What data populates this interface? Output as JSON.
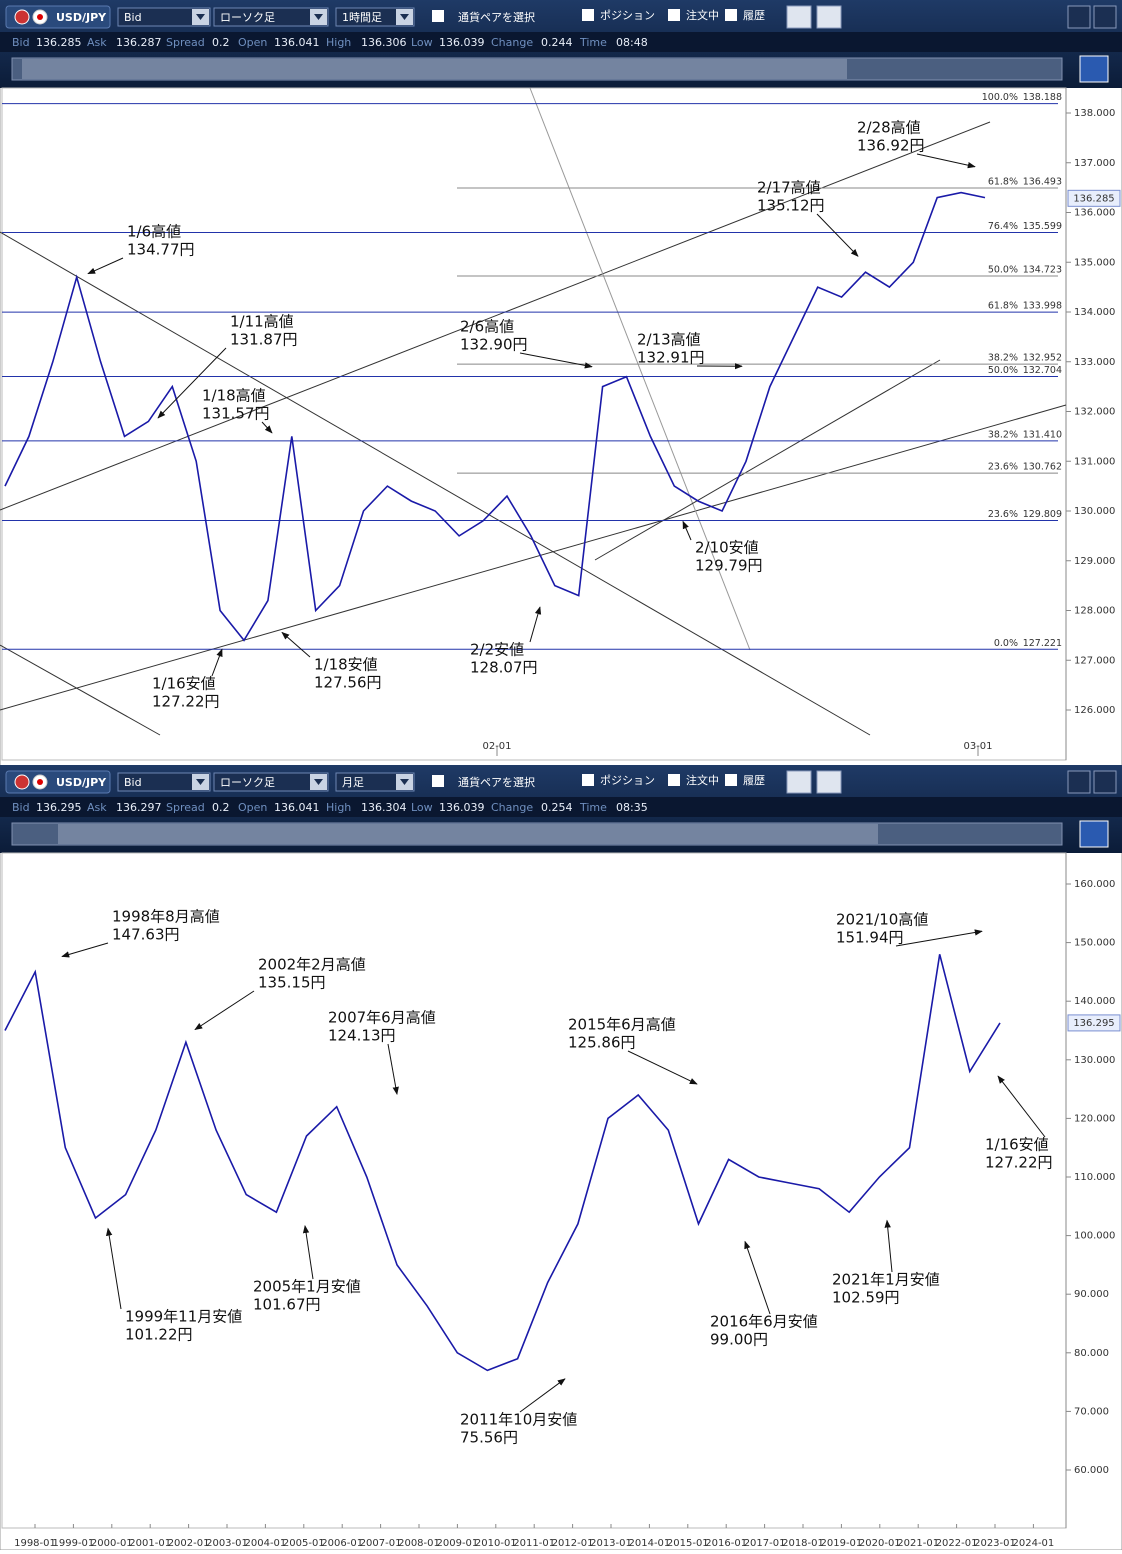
{
  "toolbars": [
    {
      "pair": "USD/JPY",
      "price_type": "Bid",
      "chart_style": "ローソク足",
      "timeframe": "1時間足",
      "pair_select": "通貨ペアを選択",
      "checkboxes": [
        "ポジション",
        "注文中",
        "履歴"
      ]
    },
    {
      "pair": "USD/JPY",
      "price_type": "Bid",
      "chart_style": "ローソク足",
      "timeframe": "月足",
      "pair_select": "通貨ペアを選択",
      "checkboxes": [
        "ポジション",
        "注文中",
        "履歴"
      ]
    }
  ],
  "quotes": [
    [
      {
        "label": "Bid",
        "value": 136.285
      },
      {
        "label": "Ask",
        "value": 136.287
      },
      {
        "label": "Spread",
        "value": 0.2
      },
      {
        "label": "Open",
        "value": 136.041
      },
      {
        "label": "High",
        "value": 136.306
      },
      {
        "label": "Low",
        "value": 136.039
      },
      {
        "label": "Change",
        "value": 0.244
      },
      {
        "label": "Time",
        "value": "08:48"
      }
    ],
    [
      {
        "label": "Bid",
        "value": 136.295
      },
      {
        "label": "Ask",
        "value": 136.297
      },
      {
        "label": "Spread",
        "value": 0.2
      },
      {
        "label": "Open",
        "value": 136.041
      },
      {
        "label": "High",
        "value": 136.304
      },
      {
        "label": "Low",
        "value": 136.039
      },
      {
        "label": "Change",
        "value": 0.254
      },
      {
        "label": "Time",
        "value": "08:35"
      }
    ]
  ],
  "chart_data": [
    {
      "type": "line",
      "color": "#1a1aa8",
      "values": [
        130.5,
        131.5,
        133,
        134.7,
        133,
        131.5,
        131.8,
        132.5,
        131,
        128,
        127.4,
        128.2,
        131.5,
        128,
        128.5,
        130,
        130.5,
        130.2,
        130,
        129.5,
        129.8,
        130.3,
        129.5,
        128.5,
        128.3,
        132.5,
        132.7,
        131.5,
        130.5,
        130.2,
        130,
        131,
        132.5,
        133.5,
        134.5,
        134.3,
        134.8,
        134.5,
        135,
        136.3,
        136.4,
        136.3
      ],
      "ylim": [
        125.5,
        138.5
      ],
      "yticks": [
        {
          "value": 126,
          "label": "126.000"
        },
        {
          "value": 127,
          "label": "127.000"
        },
        {
          "value": 128,
          "label": "128.000"
        },
        {
          "value": 129,
          "label": "129.000"
        },
        {
          "value": 130,
          "label": "130.000"
        },
        {
          "value": 131,
          "label": "131.000"
        },
        {
          "value": 132,
          "label": "132.000"
        },
        {
          "value": 133,
          "label": "133.000"
        },
        {
          "value": 134,
          "label": "134.000"
        },
        {
          "value": 135,
          "label": "135.000"
        },
        {
          "value": 136,
          "label": "136.000"
        },
        {
          "value": 137,
          "label": "137.000"
        },
        {
          "value": 138,
          "label": "138.000"
        }
      ],
      "xticks": [
        "02-01",
        "03-01"
      ],
      "current_price": 136.285,
      "fib_levels": [
        {
          "label": "100.0%",
          "value": 138.188,
          "kind": "major"
        },
        {
          "label": "61.8%",
          "value": 136.493,
          "kind": "minor"
        },
        {
          "label": "76.4%",
          "value": 135.599,
          "kind": "major"
        },
        {
          "label": "50.0%",
          "value": 134.723,
          "kind": "minor"
        },
        {
          "label": "61.8%",
          "value": 133.998,
          "kind": "major"
        },
        {
          "label": "38.2%",
          "value": 132.952,
          "kind": "minor"
        },
        {
          "label": "50.0%",
          "value": 132.704,
          "kind": "major"
        },
        {
          "label": "38.2%",
          "value": 131.41,
          "value_label": "131.410",
          "kind": "major"
        },
        {
          "label": "23.6%",
          "value": 130.762,
          "kind": "minor"
        },
        {
          "label": "23.6%",
          "value": 129.809,
          "kind": "major"
        },
        {
          "label": "0.0%",
          "value": 127.221,
          "kind": "major"
        }
      ],
      "annotations": [
        {
          "label": "2/28高値",
          "value": 136.92,
          "value_label": "136.92円"
        },
        {
          "label": "2/17高値",
          "value": 135.12,
          "value_label": "135.12円"
        },
        {
          "label": "1/6高値",
          "value": 134.77,
          "value_label": "134.77円"
        },
        {
          "label": "1/11高値",
          "value": 131.87,
          "value_label": "131.87円"
        },
        {
          "label": "2/6高値",
          "value": 132.9,
          "value_label": "132.90円"
        },
        {
          "label": "2/13高値",
          "value": 132.91,
          "value_label": "132.91円"
        },
        {
          "label": "1/18高値",
          "value": 131.57,
          "value_label": "131.57円"
        },
        {
          "label": "2/10安値",
          "value": 129.79,
          "value_label": "129.79円"
        },
        {
          "label": "1/16安値",
          "value": 127.22,
          "value_label": "127.22円"
        },
        {
          "label": "1/18安値",
          "value": 127.56,
          "value_label": "127.56円"
        },
        {
          "label": "2/2安値",
          "value": 128.07,
          "value_label": "128.07円"
        }
      ]
    },
    {
      "type": "line",
      "color": "#1a1aa8",
      "values": [
        135,
        145,
        115,
        103,
        107,
        118,
        133,
        118,
        107,
        104,
        117,
        122,
        110,
        95,
        88,
        80,
        77,
        79,
        92,
        102,
        120,
        124,
        118,
        102,
        113,
        110,
        109,
        108,
        104,
        110,
        115,
        148,
        128,
        136.3
      ],
      "ylim": [
        57,
        164
      ],
      "yticks": [
        {
          "value": 60,
          "label": "60.000"
        },
        {
          "value": 70,
          "label": "70.000"
        },
        {
          "value": 80,
          "label": "80.000"
        },
        {
          "value": 90,
          "label": "90.000"
        },
        {
          "value": 100,
          "label": "100.000"
        },
        {
          "value": 110,
          "label": "110.000"
        },
        {
          "value": 120,
          "label": "120.000"
        },
        {
          "value": 130,
          "label": "130.000"
        },
        {
          "value": 140,
          "label": "140.000"
        },
        {
          "value": 150,
          "label": "150.000"
        },
        {
          "value": 160,
          "label": "160.000"
        }
      ],
      "xticks": [
        "1998-01",
        "1999-01",
        "2000-01",
        "2001-01",
        "2002-01",
        "2003-01",
        "2004-01",
        "2005-01",
        "2006-01",
        "2007-01",
        "2008-01",
        "2009-01",
        "2010-01",
        "2011-01",
        "2012-01",
        "2013-01",
        "2014-01",
        "2015-01",
        "2016-01",
        "2017-01",
        "2018-01",
        "2019-01",
        "2020-01",
        "2021-01",
        "2022-01",
        "2023-01",
        "2024-01"
      ],
      "current_price": 136.295,
      "annotations": [
        {
          "label": "1998年8月高値",
          "value": 147.63,
          "value_label": "147.63円"
        },
        {
          "label": "2002年2月高値",
          "value": 135.15,
          "value_label": "135.15円"
        },
        {
          "label": "2007年6月高値",
          "value": 124.13,
          "value_label": "124.13円"
        },
        {
          "label": "2015年6月高値",
          "value": 125.86,
          "value_label": "125.86円"
        },
        {
          "label": "2021/10高値",
          "value": 151.94,
          "value_label": "151.94円"
        },
        {
          "label": "1/16安値",
          "value": 127.22,
          "value_label": "127.22円"
        },
        {
          "label": "1999年11月安値",
          "value": 101.22,
          "value_label": "101.22円"
        },
        {
          "label": "2005年1月安値",
          "value": 101.67,
          "value_label": "101.67円"
        },
        {
          "label": "2011年10月安値",
          "value": 75.56,
          "value_label": "75.56円"
        },
        {
          "label": "2016年6月安値",
          "value": 99,
          "value_label": "99.00円"
        },
        {
          "label": "2021年1月安値",
          "value": 102.59,
          "value_label": "102.59円"
        }
      ]
    }
  ]
}
